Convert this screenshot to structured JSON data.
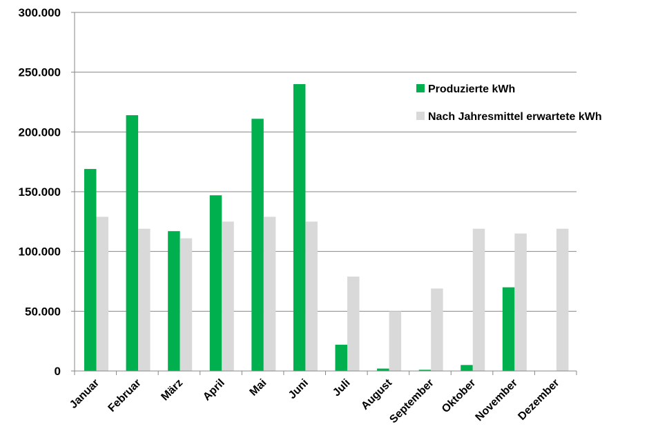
{
  "chart_data": {
    "type": "bar",
    "categories": [
      "Januar",
      "Februar",
      "März",
      "April",
      "Mai",
      "Juni",
      "Juli",
      "August",
      "September",
      "Oktober",
      "November",
      "Dezember"
    ],
    "series": [
      {
        "name": "Produzierte kWh",
        "color": "#00b04f",
        "values": [
          169000,
          214000,
          117000,
          147000,
          211000,
          240000,
          22000,
          2000,
          1000,
          5000,
          70000,
          0
        ]
      },
      {
        "name": "Nach Jahresmittel erwartete kWh",
        "color": "#d9d9d9",
        "values": [
          129000,
          119000,
          111000,
          125000,
          129000,
          125000,
          79000,
          50000,
          69000,
          119000,
          115000,
          119000
        ]
      }
    ],
    "ylim": [
      0,
      300000
    ],
    "yticks": [
      0,
      50000,
      100000,
      150000,
      200000,
      250000,
      300000
    ],
    "ytick_labels": [
      "0",
      "50.000",
      "100.000",
      "150.000",
      "200.000",
      "250.000",
      "300.000"
    ],
    "grid": true,
    "legend_position": "right",
    "title": "",
    "xlabel": "",
    "ylabel": ""
  }
}
